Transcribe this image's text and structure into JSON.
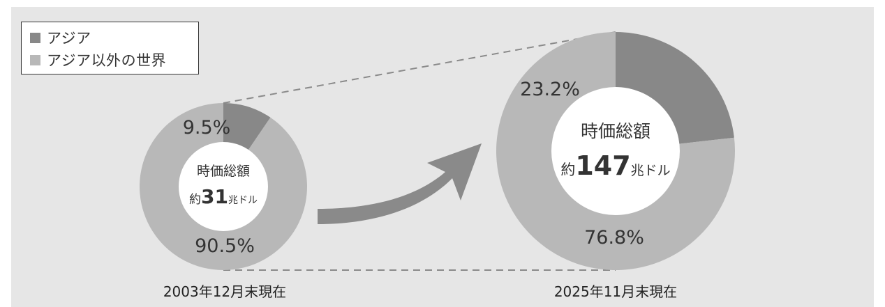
{
  "colors": {
    "asia": "#888888",
    "rest_of_world": "#b8b8b8",
    "arrow": "#8a8a8a",
    "background": "#e6e6e6",
    "center": "#ffffff",
    "text": "#333333"
  },
  "legend": [
    {
      "label": "アジア",
      "color": "#888888"
    },
    {
      "label": "アジア以外の世界",
      "color": "#b8b8b8"
    }
  ],
  "chart_data": [
    {
      "type": "pie",
      "caption": "2003年12月末現在",
      "center_title": "時価総額",
      "center_prefix": "約",
      "center_value": "31",
      "center_unit": "兆ドル",
      "slices": [
        {
          "name": "アジア",
          "value": 9.5,
          "label": "9.5%"
        },
        {
          "name": "アジア以外の世界",
          "value": 90.5,
          "label": "90.5%"
        }
      ]
    },
    {
      "type": "pie",
      "caption": "2025年11月末現在",
      "center_title": "時価総額",
      "center_prefix": "約",
      "center_value": "147",
      "center_unit": "兆ドル",
      "slices": [
        {
          "name": "アジア",
          "value": 23.2,
          "label": "23.2%"
        },
        {
          "name": "アジア以外の世界",
          "value": 76.8,
          "label": "76.8%"
        }
      ]
    }
  ]
}
